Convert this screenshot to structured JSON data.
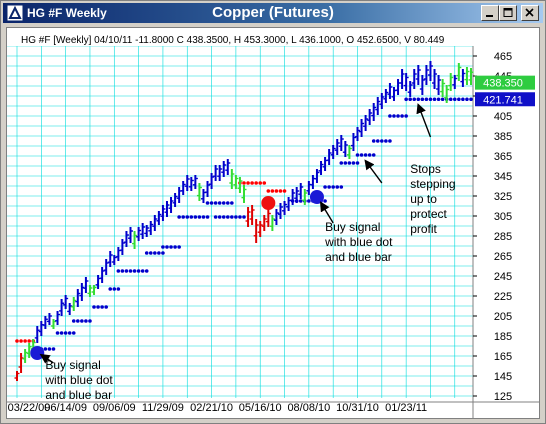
{
  "window": {
    "title": "HG #F Weekly",
    "center_title": "Copper (Futures)"
  },
  "chart_data": {
    "type": "bar",
    "subtype": "ohlc-price-bars",
    "info_line": "HG #F [Weekly] 04/10/11  -11.8000  C 438.3500, H 453.3000, L 436.1000, O 452.6500, V 80.449",
    "y_ticks": [
      "465",
      "445",
      "425",
      "405",
      "385",
      "365",
      "345",
      "325",
      "305",
      "285",
      "265",
      "245",
      "225",
      "205",
      "185",
      "165",
      "145",
      "125"
    ],
    "ylim": [
      125,
      475
    ],
    "x_ticks": [
      "03/22/09",
      "06/14/09",
      "09/06/09",
      "11/29/09",
      "02/21/10",
      "05/16/10",
      "08/08/10",
      "10/31/10",
      "01/23/11"
    ],
    "x_tick_index": [
      0,
      12,
      24,
      36,
      48,
      60,
      72,
      84,
      96
    ],
    "price_labels": [
      {
        "text": "438.350",
        "value": 438.35,
        "bg": "#2ecc40",
        "color": "#ffffff"
      },
      {
        "text": "421.741",
        "value": 421.741,
        "bg": "#1010c8",
        "color": "#ffffff"
      }
    ],
    "colors": {
      "up": "#0000cc",
      "neutral": "#33dd33",
      "down": "#dd0000",
      "stop_blue": "#0000cc",
      "stop_red": "#ff0000",
      "grid": "#00dddd"
    },
    "bars": [
      [
        150,
        140,
        "r"
      ],
      [
        168,
        148,
        "r"
      ],
      [
        172,
        158,
        "g"
      ],
      [
        178,
        163,
        "g"
      ],
      [
        182,
        168,
        "g"
      ],
      [
        195,
        178,
        "b"
      ],
      [
        200,
        185,
        "b"
      ],
      [
        205,
        192,
        "b"
      ],
      [
        208,
        196,
        "b"
      ],
      [
        202,
        192,
        "g"
      ],
      [
        210,
        196,
        "b"
      ],
      [
        222,
        205,
        "b"
      ],
      [
        226,
        212,
        "b"
      ],
      [
        218,
        206,
        "b"
      ],
      [
        224,
        210,
        "g"
      ],
      [
        232,
        214,
        "b"
      ],
      [
        238,
        220,
        "b"
      ],
      [
        244,
        228,
        "b"
      ],
      [
        236,
        224,
        "g"
      ],
      [
        236,
        226,
        "g"
      ],
      [
        246,
        232,
        "b"
      ],
      [
        254,
        238,
        "b"
      ],
      [
        262,
        246,
        "b"
      ],
      [
        270,
        254,
        "b"
      ],
      [
        266,
        256,
        "b"
      ],
      [
        274,
        260,
        "b"
      ],
      [
        282,
        266,
        "b"
      ],
      [
        290,
        274,
        "b"
      ],
      [
        294,
        278,
        "b"
      ],
      [
        290,
        272,
        "g"
      ],
      [
        294,
        280,
        "b"
      ],
      [
        298,
        282,
        "b"
      ],
      [
        296,
        284,
        "b"
      ],
      [
        300,
        286,
        "b"
      ],
      [
        306,
        290,
        "b"
      ],
      [
        310,
        296,
        "b"
      ],
      [
        316,
        300,
        "b"
      ],
      [
        320,
        304,
        "b"
      ],
      [
        324,
        308,
        "b"
      ],
      [
        328,
        314,
        "b"
      ],
      [
        334,
        318,
        "b"
      ],
      [
        340,
        326,
        "b"
      ],
      [
        346,
        330,
        "b"
      ],
      [
        344,
        330,
        "b"
      ],
      [
        346,
        332,
        "b"
      ],
      [
        338,
        320,
        "g"
      ],
      [
        332,
        318,
        "b"
      ],
      [
        340,
        324,
        "b"
      ],
      [
        348,
        332,
        "b"
      ],
      [
        356,
        340,
        "b"
      ],
      [
        356,
        340,
        "b"
      ],
      [
        360,
        344,
        "b"
      ],
      [
        362,
        346,
        "b"
      ],
      [
        352,
        332,
        "g"
      ],
      [
        346,
        332,
        "g"
      ],
      [
        344,
        328,
        "g"
      ],
      [
        336,
        318,
        "g"
      ],
      [
        314,
        294,
        "r"
      ],
      [
        316,
        296,
        "r"
      ],
      [
        302,
        278,
        "r"
      ],
      [
        300,
        284,
        "r"
      ],
      [
        306,
        290,
        "r"
      ],
      [
        312,
        294,
        "r"
      ],
      [
        306,
        290,
        "g"
      ],
      [
        312,
        296,
        "b"
      ],
      [
        318,
        302,
        "b"
      ],
      [
        320,
        306,
        "b"
      ],
      [
        324,
        310,
        "b"
      ],
      [
        332,
        316,
        "b"
      ],
      [
        334,
        318,
        "b"
      ],
      [
        338,
        322,
        "b"
      ],
      [
        332,
        316,
        "g"
      ],
      [
        340,
        326,
        "b"
      ],
      [
        346,
        332,
        "b"
      ],
      [
        352,
        338,
        "b"
      ],
      [
        360,
        346,
        "b"
      ],
      [
        364,
        350,
        "b"
      ],
      [
        372,
        356,
        "b"
      ],
      [
        376,
        362,
        "b"
      ],
      [
        382,
        366,
        "b"
      ],
      [
        386,
        370,
        "b"
      ],
      [
        380,
        364,
        "b"
      ],
      [
        376,
        362,
        "g"
      ],
      [
        388,
        370,
        "b"
      ],
      [
        394,
        380,
        "b"
      ],
      [
        402,
        384,
        "b"
      ],
      [
        406,
        390,
        "b"
      ],
      [
        412,
        396,
        "b"
      ],
      [
        418,
        400,
        "b"
      ],
      [
        424,
        406,
        "b"
      ],
      [
        428,
        412,
        "b"
      ],
      [
        432,
        418,
        "b"
      ],
      [
        438,
        422,
        "b"
      ],
      [
        434,
        420,
        "b"
      ],
      [
        442,
        426,
        "b"
      ],
      [
        452,
        432,
        "b"
      ],
      [
        448,
        430,
        "b"
      ],
      [
        440,
        424,
        "b"
      ],
      [
        452,
        432,
        "b"
      ],
      [
        456,
        436,
        "b"
      ],
      [
        446,
        426,
        "b"
      ],
      [
        456,
        436,
        "b"
      ],
      [
        460,
        440,
        "b"
      ],
      [
        452,
        432,
        "b"
      ],
      [
        446,
        426,
        "b"
      ],
      [
        442,
        424,
        "g"
      ],
      [
        436,
        418,
        "g"
      ],
      [
        448,
        430,
        "g"
      ],
      [
        446,
        432,
        "b"
      ],
      [
        458,
        440,
        "g"
      ],
      [
        452,
        434,
        "b"
      ],
      [
        454,
        436,
        "g"
      ],
      [
        453,
        436,
        "g"
      ]
    ],
    "stops": [
      {
        "color": "red",
        "value": 180,
        "from": 0,
        "to": 4
      },
      {
        "color": "red",
        "value": 170,
        "from": 4,
        "to": 6
      },
      {
        "color": "blue",
        "value": 172,
        "from": 6,
        "to": 9
      },
      {
        "color": "blue",
        "value": 188,
        "from": 10,
        "to": 14
      },
      {
        "color": "blue",
        "value": 200,
        "from": 14,
        "to": 18
      },
      {
        "color": "blue",
        "value": 214,
        "from": 19,
        "to": 22
      },
      {
        "color": "blue",
        "value": 232,
        "from": 23,
        "to": 25
      },
      {
        "color": "blue",
        "value": 250,
        "from": 25,
        "to": 32
      },
      {
        "color": "blue",
        "value": 268,
        "from": 32,
        "to": 36
      },
      {
        "color": "blue",
        "value": 274,
        "from": 36,
        "to": 40
      },
      {
        "color": "blue",
        "value": 304,
        "from": 40,
        "to": 47
      },
      {
        "color": "blue",
        "value": 318,
        "from": 47,
        "to": 53
      },
      {
        "color": "blue",
        "value": 304,
        "from": 49,
        "to": 56
      },
      {
        "color": "red",
        "value": 338,
        "from": 55,
        "to": 61
      },
      {
        "color": "red",
        "value": 330,
        "from": 62,
        "to": 66
      },
      {
        "color": "blue",
        "value": 320,
        "from": 68,
        "to": 76
      },
      {
        "color": "blue",
        "value": 334,
        "from": 76,
        "to": 80
      },
      {
        "color": "blue",
        "value": 358,
        "from": 80,
        "to": 84
      },
      {
        "color": "blue",
        "value": 366,
        "from": 84,
        "to": 88
      },
      {
        "color": "blue",
        "value": 380,
        "from": 88,
        "to": 92
      },
      {
        "color": "blue",
        "value": 405,
        "from": 92,
        "to": 96
      },
      {
        "color": "blue",
        "value": 421.741,
        "from": 96,
        "to": 112
      }
    ],
    "signal_dots": [
      {
        "color": "blue",
        "index": 5,
        "value": 168
      },
      {
        "color": "red",
        "index": 62,
        "value": 318
      },
      {
        "color": "blue",
        "index": 74,
        "value": 324
      }
    ],
    "annotations": [
      {
        "lines": [
          "Buy signal",
          "with blue dot",
          "and blue bar"
        ],
        "text_value": 152,
        "text_index": 7,
        "arrow_from": [
          9,
          158
        ],
        "arrow_to": [
          6,
          166
        ]
      },
      {
        "lines": [
          "Buy signal",
          "with blue dot",
          "and blue bar"
        ],
        "text_value": 290,
        "text_index": 76,
        "arrow_from": [
          78,
          298
        ],
        "arrow_to": [
          75,
          318
        ]
      },
      {
        "lines": [
          "Stops",
          "stepping",
          "up to",
          "protect",
          "profit"
        ],
        "text_value": 348,
        "text_index": 97,
        "arrow_from": [
          90,
          338
        ],
        "arrow_to": [
          86,
          360
        ]
      },
      {
        "lines": [],
        "arrow_from": [
          102,
          384
        ],
        "arrow_to": [
          99,
          416
        ]
      }
    ]
  }
}
